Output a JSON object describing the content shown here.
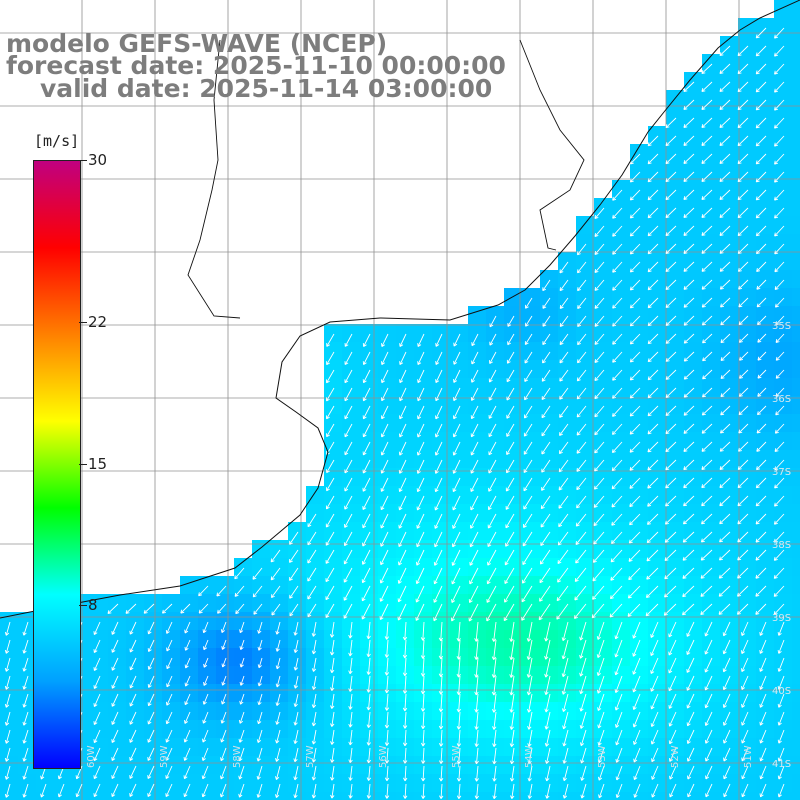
{
  "map_title": {
    "model": "modelo GEFS-WAVE (NCEP)",
    "forecast": "forecast date: 2025-11-10 00:00:00",
    "valid": "valid date: 2025-11-14 03:00:00"
  },
  "region": {
    "lon_range": [
      -60,
      -49
    ],
    "lat_range": [
      -41,
      -30
    ]
  },
  "latitude_labels": [
    "35S",
    "36S",
    "37S",
    "38S",
    "39S",
    "40S",
    "41S"
  ],
  "longitude_labels": [
    "60W",
    "59W",
    "58W",
    "57W",
    "56W",
    "55W",
    "54W",
    "53W",
    "52W",
    "51W"
  ],
  "colorbar": {
    "unit": "[m/s]",
    "ticks": [
      "30",
      "22",
      "15",
      "8"
    ],
    "min": 0,
    "max": 30,
    "colors": [
      "#0000ff",
      "#00a0ff",
      "#00ffff",
      "#00ff00",
      "#ffff00",
      "#ff8000",
      "#ff0000",
      "#c00080"
    ]
  },
  "field": {
    "variable": "wind speed",
    "dominant_direction": "southwest"
  }
}
